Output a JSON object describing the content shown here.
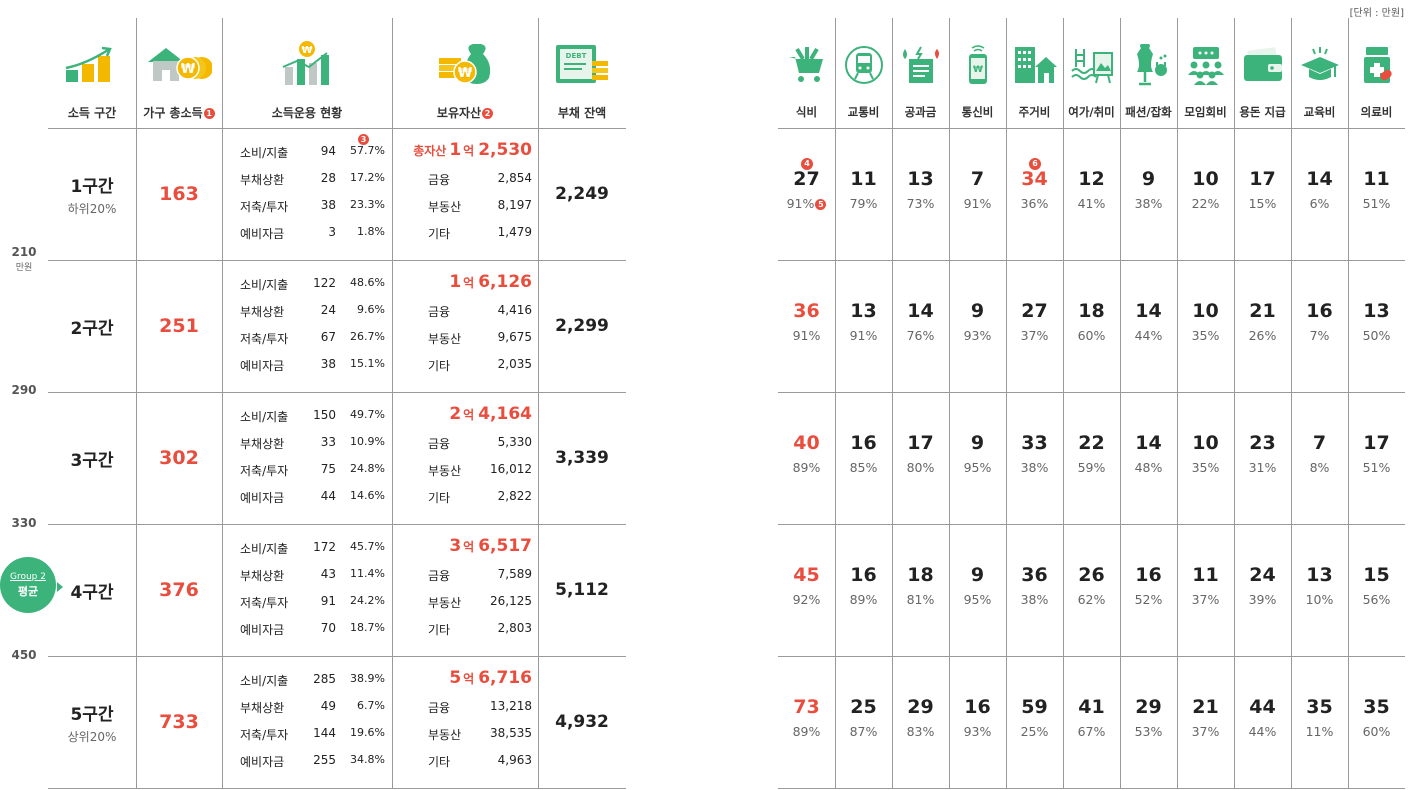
{
  "unit_note": "[단위 : 만원]",
  "left": {
    "headers": [
      {
        "label": "소득 구간",
        "badge": "",
        "icon": "income-growth-icon"
      },
      {
        "label": "가구 총소득",
        "badge": "1",
        "icon": "house-coins-icon"
      },
      {
        "label": "소득운용 현황",
        "badge": "",
        "icon": "income-chart-icon"
      },
      {
        "label": "보유자산",
        "badge": "2",
        "icon": "assets-money-bag-icon"
      },
      {
        "label": "부채 잔액",
        "badge": "",
        "icon": "debt-document-icon"
      }
    ],
    "usage_badge": "3",
    "boundaries": [
      {
        "value": "210",
        "unit": "만원"
      },
      {
        "value": "290",
        "unit": ""
      },
      {
        "value": "330",
        "unit": ""
      },
      {
        "value": "450",
        "unit": ""
      }
    ],
    "group_badge": {
      "group": "Group 2",
      "label": "평균"
    },
    "rows": [
      {
        "segment": "1구간",
        "sub": "하위20%",
        "income": "163",
        "usage": [
          {
            "k": "소비/지출",
            "v": "94",
            "p": "57.7%"
          },
          {
            "k": "부채상환",
            "v": "28",
            "p": "17.2%"
          },
          {
            "k": "저축/투자",
            "v": "38",
            "p": "23.3%"
          },
          {
            "k": "예비자금",
            "v": "3",
            "p": "1.8%"
          }
        ],
        "assets_label": "총자산",
        "assets_hundred_million": "1",
        "assets_unit": "억",
        "assets_rest": "2,530",
        "assets": [
          {
            "k": "금융",
            "v": "2,854"
          },
          {
            "k": "부동산",
            "v": "8,197"
          },
          {
            "k": "기타",
            "v": "1,479"
          }
        ],
        "debt": "2,249"
      },
      {
        "segment": "2구간",
        "sub": "",
        "income": "251",
        "usage": [
          {
            "k": "소비/지출",
            "v": "122",
            "p": "48.6%"
          },
          {
            "k": "부채상환",
            "v": "24",
            "p": "9.6%"
          },
          {
            "k": "저축/투자",
            "v": "67",
            "p": "26.7%"
          },
          {
            "k": "예비자금",
            "v": "38",
            "p": "15.1%"
          }
        ],
        "assets_label": "",
        "assets_hundred_million": "1",
        "assets_unit": "억",
        "assets_rest": "6,126",
        "assets": [
          {
            "k": "금융",
            "v": "4,416"
          },
          {
            "k": "부동산",
            "v": "9,675"
          },
          {
            "k": "기타",
            "v": "2,035"
          }
        ],
        "debt": "2,299"
      },
      {
        "segment": "3구간",
        "sub": "",
        "income": "302",
        "usage": [
          {
            "k": "소비/지출",
            "v": "150",
            "p": "49.7%"
          },
          {
            "k": "부채상환",
            "v": "33",
            "p": "10.9%"
          },
          {
            "k": "저축/투자",
            "v": "75",
            "p": "24.8%"
          },
          {
            "k": "예비자금",
            "v": "44",
            "p": "14.6%"
          }
        ],
        "assets_label": "",
        "assets_hundred_million": "2",
        "assets_unit": "억",
        "assets_rest": "4,164",
        "assets": [
          {
            "k": "금융",
            "v": "5,330"
          },
          {
            "k": "부동산",
            "v": "16,012"
          },
          {
            "k": "기타",
            "v": "2,822"
          }
        ],
        "debt": "3,339"
      },
      {
        "segment": "4구간",
        "sub": "",
        "income": "376",
        "usage": [
          {
            "k": "소비/지출",
            "v": "172",
            "p": "45.7%"
          },
          {
            "k": "부채상환",
            "v": "43",
            "p": "11.4%"
          },
          {
            "k": "저축/투자",
            "v": "91",
            "p": "24.2%"
          },
          {
            "k": "예비자금",
            "v": "70",
            "p": "18.7%"
          }
        ],
        "assets_label": "",
        "assets_hundred_million": "3",
        "assets_unit": "억",
        "assets_rest": "6,517",
        "assets": [
          {
            "k": "금융",
            "v": "7,589"
          },
          {
            "k": "부동산",
            "v": "26,125"
          },
          {
            "k": "기타",
            "v": "2,803"
          }
        ],
        "debt": "5,112"
      },
      {
        "segment": "5구간",
        "sub": "상위20%",
        "income": "733",
        "usage": [
          {
            "k": "소비/지출",
            "v": "285",
            "p": "38.9%"
          },
          {
            "k": "부채상환",
            "v": "49",
            "p": "6.7%"
          },
          {
            "k": "저축/투자",
            "v": "144",
            "p": "19.6%"
          },
          {
            "k": "예비자금",
            "v": "255",
            "p": "34.8%"
          }
        ],
        "assets_label": "",
        "assets_hundred_million": "5",
        "assets_unit": "억",
        "assets_rest": "6,716",
        "assets": [
          {
            "k": "금융",
            "v": "13,218"
          },
          {
            "k": "부동산",
            "v": "38,535"
          },
          {
            "k": "기타",
            "v": "4,963"
          }
        ],
        "debt": "4,932"
      }
    ]
  },
  "right": {
    "categories": [
      {
        "label": "식비",
        "icon": "grocery-cart-icon"
      },
      {
        "label": "교통비",
        "icon": "train-icon"
      },
      {
        "label": "공과금",
        "icon": "utility-bill-icon"
      },
      {
        "label": "통신비",
        "icon": "smartphone-icon"
      },
      {
        "label": "주거비",
        "icon": "housing-building-icon"
      },
      {
        "label": "여가/취미",
        "icon": "leisure-pool-icon"
      },
      {
        "label": "패션/잡화",
        "icon": "fashion-mannequin-icon"
      },
      {
        "label": "모임회비",
        "icon": "group-chat-icon"
      },
      {
        "label": "용돈 지급",
        "icon": "wallet-icon"
      },
      {
        "label": "교육비",
        "icon": "graduation-cap-icon"
      },
      {
        "label": "의료비",
        "icon": "medicine-bottle-icon"
      }
    ],
    "colors": {
      "accent": "#e84d3d",
      "icon_green": "#3cb37a"
    },
    "rows": [
      [
        {
          "v": "27",
          "p": "91%",
          "hl": false,
          "badge_top": "4",
          "badge_pct": "5"
        },
        {
          "v": "11",
          "p": "79%"
        },
        {
          "v": "13",
          "p": "73%"
        },
        {
          "v": "7",
          "p": "91%"
        },
        {
          "v": "34",
          "p": "36%",
          "hl": true,
          "badge_top": "6"
        },
        {
          "v": "12",
          "p": "41%"
        },
        {
          "v": "9",
          "p": "38%"
        },
        {
          "v": "10",
          "p": "22%"
        },
        {
          "v": "17",
          "p": "15%"
        },
        {
          "v": "14",
          "p": "6%"
        },
        {
          "v": "11",
          "p": "51%"
        }
      ],
      [
        {
          "v": "36",
          "p": "91%",
          "hl": true
        },
        {
          "v": "13",
          "p": "91%"
        },
        {
          "v": "14",
          "p": "76%"
        },
        {
          "v": "9",
          "p": "93%"
        },
        {
          "v": "27",
          "p": "37%"
        },
        {
          "v": "18",
          "p": "60%"
        },
        {
          "v": "14",
          "p": "44%"
        },
        {
          "v": "10",
          "p": "35%"
        },
        {
          "v": "21",
          "p": "26%"
        },
        {
          "v": "16",
          "p": "7%"
        },
        {
          "v": "13",
          "p": "50%"
        }
      ],
      [
        {
          "v": "40",
          "p": "89%",
          "hl": true
        },
        {
          "v": "16",
          "p": "85%"
        },
        {
          "v": "17",
          "p": "80%"
        },
        {
          "v": "9",
          "p": "95%"
        },
        {
          "v": "33",
          "p": "38%"
        },
        {
          "v": "22",
          "p": "59%"
        },
        {
          "v": "14",
          "p": "48%"
        },
        {
          "v": "10",
          "p": "35%"
        },
        {
          "v": "23",
          "p": "31%"
        },
        {
          "v": "7",
          "p": "8%"
        },
        {
          "v": "17",
          "p": "51%"
        }
      ],
      [
        {
          "v": "45",
          "p": "92%",
          "hl": true
        },
        {
          "v": "16",
          "p": "89%"
        },
        {
          "v": "18",
          "p": "81%"
        },
        {
          "v": "9",
          "p": "95%"
        },
        {
          "v": "36",
          "p": "38%"
        },
        {
          "v": "26",
          "p": "62%"
        },
        {
          "v": "16",
          "p": "52%"
        },
        {
          "v": "11",
          "p": "37%"
        },
        {
          "v": "24",
          "p": "39%"
        },
        {
          "v": "13",
          "p": "10%"
        },
        {
          "v": "15",
          "p": "56%"
        }
      ],
      [
        {
          "v": "73",
          "p": "89%",
          "hl": true
        },
        {
          "v": "25",
          "p": "87%"
        },
        {
          "v": "29",
          "p": "83%"
        },
        {
          "v": "16",
          "p": "93%"
        },
        {
          "v": "59",
          "p": "25%"
        },
        {
          "v": "41",
          "p": "67%"
        },
        {
          "v": "29",
          "p": "53%"
        },
        {
          "v": "21",
          "p": "37%"
        },
        {
          "v": "44",
          "p": "44%"
        },
        {
          "v": "35",
          "p": "11%"
        },
        {
          "v": "35",
          "p": "60%"
        }
      ]
    ]
  }
}
